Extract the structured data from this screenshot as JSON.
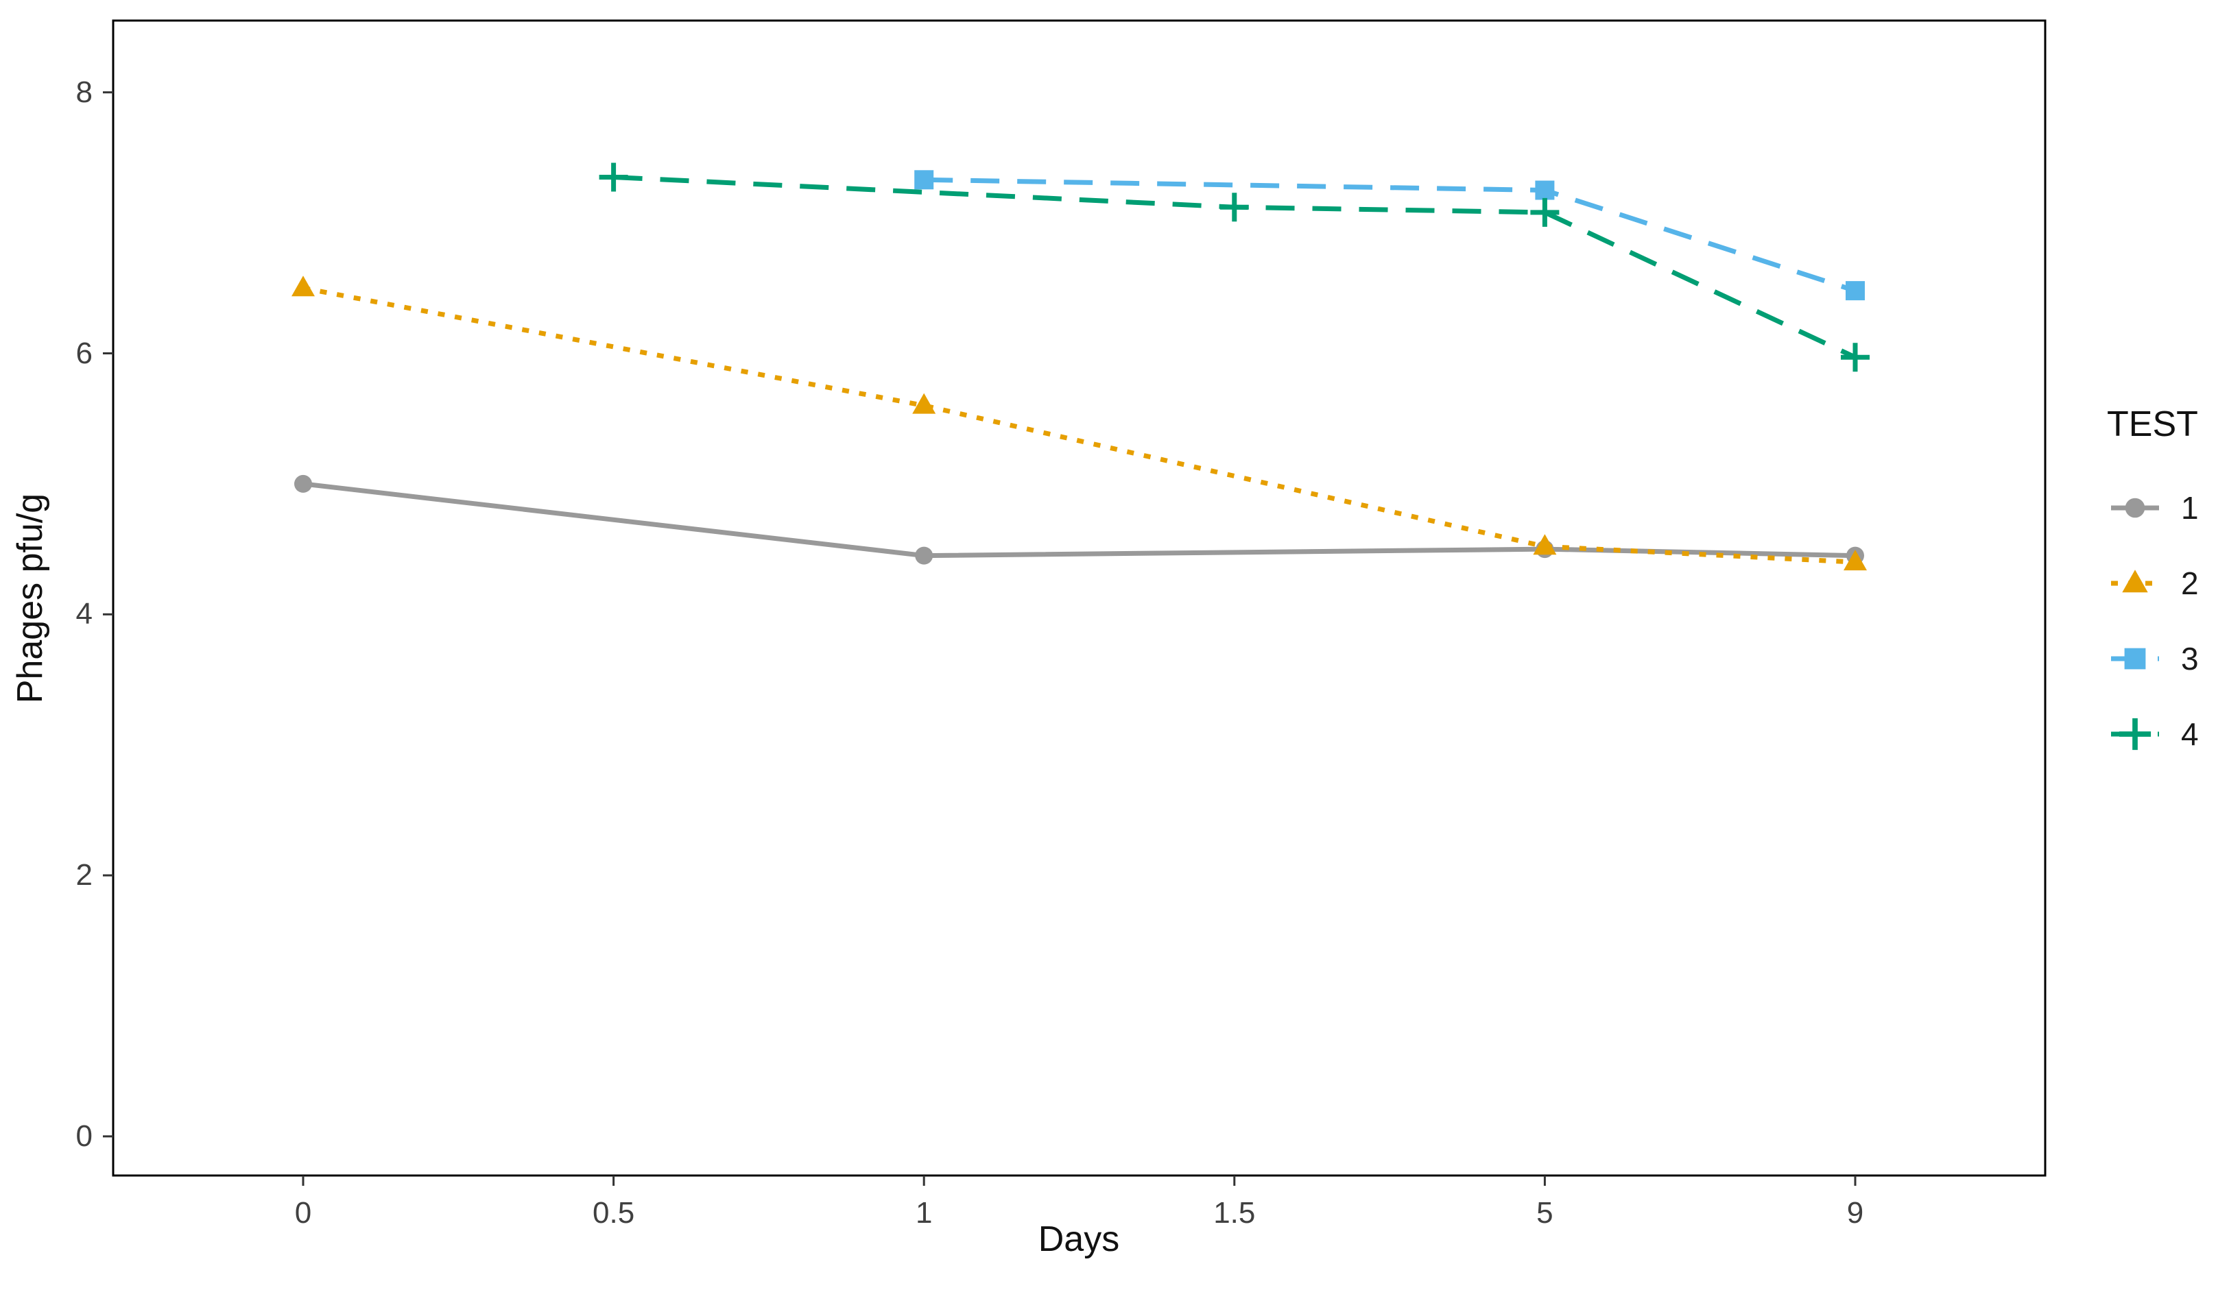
{
  "chart_data": {
    "type": "line",
    "title": "",
    "xlabel": "Days",
    "ylabel": "Phages pfu/g",
    "x_categories": [
      "0",
      "0.5",
      "1",
      "1.5",
      "5",
      "9"
    ],
    "x_axis_discrete": true,
    "y_ticks": [
      0,
      2,
      4,
      6,
      8
    ],
    "ylim": [
      -0.3,
      8.55
    ],
    "grid": false,
    "panel_border_color": "#000000",
    "tick_color": "#333333",
    "legend": {
      "title": "TEST",
      "position": "right"
    },
    "series": [
      {
        "name": "1",
        "color": "#999999",
        "linetype": "solid",
        "marker": "circle",
        "points": [
          {
            "x": "0",
            "y": 5.0
          },
          {
            "x": "1",
            "y": 4.45
          },
          {
            "x": "5",
            "y": 4.5
          },
          {
            "x": "9",
            "y": 4.45
          }
        ]
      },
      {
        "name": "2",
        "color": "#E69F00",
        "linetype": "dotted",
        "marker": "triangle",
        "points": [
          {
            "x": "0",
            "y": 6.5
          },
          {
            "x": "1",
            "y": 5.6
          },
          {
            "x": "5",
            "y": 4.52
          },
          {
            "x": "9",
            "y": 4.4
          }
        ]
      },
      {
        "name": "3",
        "color": "#56B4E9",
        "linetype": "dashed",
        "marker": "square",
        "points": [
          {
            "x": "1",
            "y": 7.33
          },
          {
            "x": "5",
            "y": 7.25
          },
          {
            "x": "9",
            "y": 6.48
          }
        ]
      },
      {
        "name": "4",
        "color": "#009E73",
        "linetype": "dashed",
        "marker": "plus",
        "points": [
          {
            "x": "0.5",
            "y": 7.35
          },
          {
            "x": "1.5",
            "y": 7.12
          },
          {
            "x": "5",
            "y": 7.08
          },
          {
            "x": "9",
            "y": 5.97
          }
        ]
      }
    ]
  }
}
